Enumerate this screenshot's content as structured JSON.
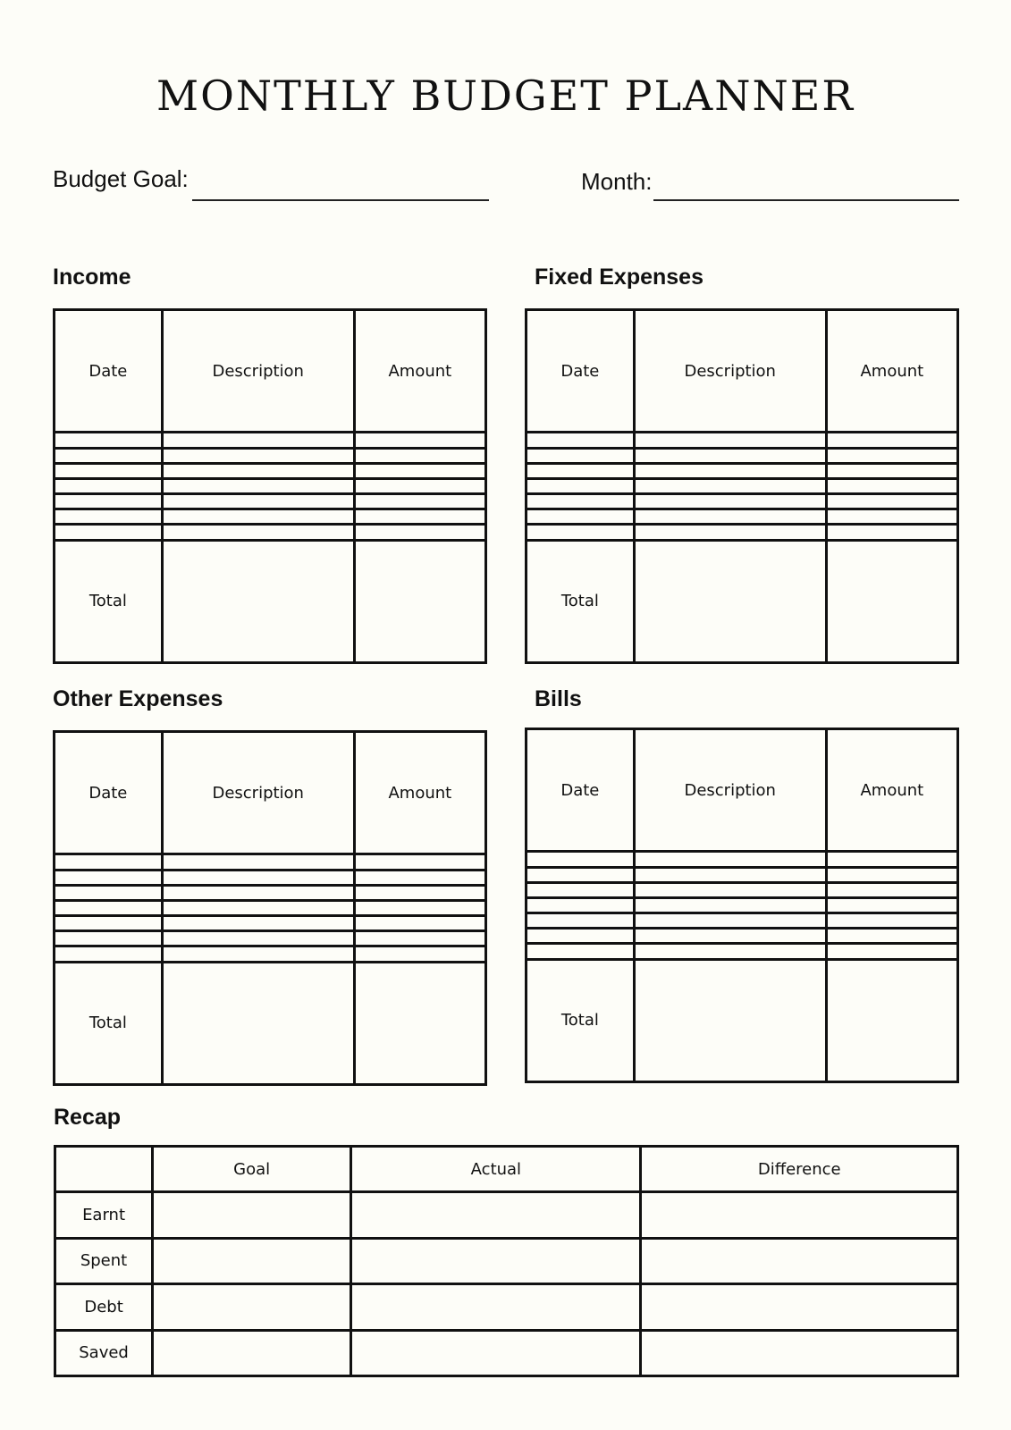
{
  "title": "MONTHLY BUDGET PLANNER",
  "budget_goal_label": "Budget Goal:",
  "month_label": "Month:",
  "columns": {
    "date": "Date",
    "description": "Description",
    "amount": "Amount"
  },
  "total_label": "Total",
  "sections": {
    "income": "Income",
    "fixed": "Fixed Expenses",
    "other": "Other Expenses",
    "bills": "Bills"
  },
  "recap": {
    "title": "Recap",
    "headers": [
      "Goal",
      "Actual",
      "Difference"
    ],
    "rows": [
      "Earnt",
      "Spent",
      "Debt",
      "Saved"
    ]
  }
}
